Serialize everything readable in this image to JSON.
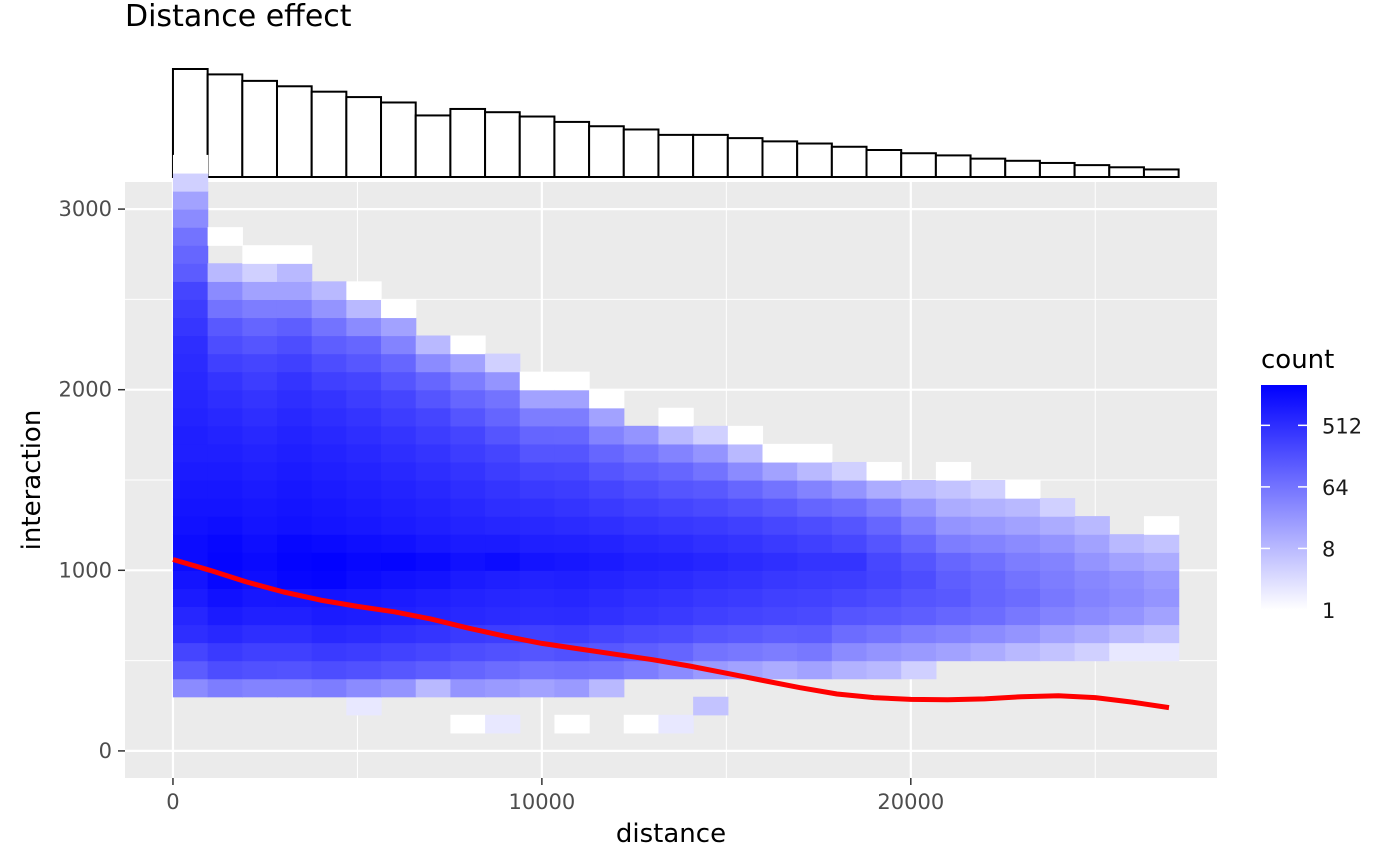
{
  "chart_data": {
    "title": "Distance effect",
    "xlabel": "distance",
    "ylabel": "interaction",
    "x_ticks": [
      0,
      10000,
      20000
    ],
    "y_ticks": [
      0,
      1000,
      2000,
      3000
    ],
    "xlim": [
      -1300,
      28300
    ],
    "ylim": [
      -150,
      3150
    ],
    "grid": true,
    "legend": {
      "title": "count",
      "position": "right",
      "scale": "log2",
      "breaks": [
        {
          "value": 512,
          "label": "512"
        },
        {
          "value": 64,
          "label": "64"
        },
        {
          "value": 8,
          "label": "8"
        },
        {
          "value": 1,
          "label": "1"
        }
      ],
      "low_color": "#ffffff",
      "high_color": "#0000ff",
      "max_count": 2000
    },
    "panels": [
      {
        "type": "heatmap",
        "name": "interaction vs distance",
        "bin_width_x": 940,
        "bin_width_y": 100,
        "columns": [
          {
            "x": 470,
            "counts": [
              null,
              null,
              32,
              128,
              256,
              512,
              640,
              900,
              1100,
              1400,
              1400,
              1200,
              1100,
              1000,
              900,
              800,
              800,
              700,
              640,
              600,
              560,
              512,
              400,
              320,
              256,
              128,
              96,
              64,
              32,
              16,
              4,
              1
            ]
          },
          {
            "x": 1410,
            "counts": [
              null,
              null,
              48,
              200,
              350,
              600,
              900,
              1200,
              1600,
              1700,
              1600,
              1300,
              1100,
              1000,
              900,
              800,
              700,
              600,
              512,
              420,
              300,
              200,
              140,
              64,
              32,
              8,
              null,
              1
            ]
          },
          {
            "x": 2350,
            "counts": [
              null,
              null,
              40,
              180,
              300,
              512,
              760,
              1000,
              1300,
              1500,
              1300,
              1100,
              1000,
              900,
              800,
              700,
              600,
              512,
              420,
              320,
              256,
              160,
              100,
              48,
              16,
              4,
              1
            ]
          },
          {
            "x": 3290,
            "counts": [
              null,
              null,
              40,
              170,
              300,
              512,
              780,
              1050,
              1600,
              1800,
              1600,
              1200,
              1100,
              1000,
              900,
              800,
              700,
              600,
              512,
              420,
              300,
              200,
              120,
              48,
              16,
              8,
              1
            ]
          },
          {
            "x": 4230,
            "counts": [
              null,
              null,
              48,
              200,
              350,
              600,
              900,
              1100,
              1700,
              1900,
              1500,
              1100,
              1000,
              900,
              800,
              700,
              600,
              512,
              420,
              300,
              200,
              120,
              64,
              24,
              8
            ]
          },
          {
            "x": 5170,
            "counts": [
              null,
              2,
              32,
              180,
              320,
              560,
              840,
              1000,
              1400,
              1600,
              1300,
              1000,
              900,
              800,
              700,
              600,
              512,
              420,
              320,
              256,
              150,
              96,
              32,
              8,
              1
            ]
          },
          {
            "x": 6110,
            "counts": [
              null,
              null,
              24,
              150,
              280,
              480,
              760,
              900,
              1200,
              1700,
              1200,
              900,
              800,
              700,
              600,
              512,
              420,
              320,
              256,
              160,
              96,
              40,
              16,
              1
            ]
          },
          {
            "x": 7050,
            "counts": [
              null,
              null,
              8,
              120,
              240,
              420,
              680,
              800,
              1100,
              1500,
              1000,
              800,
              700,
              600,
              512,
              420,
              320,
              256,
              160,
              96,
              32,
              8
            ]
          },
          {
            "x": 7990,
            "counts": [
              1,
              null,
              24,
              100,
              200,
              360,
              600,
              700,
              900,
              1200,
              900,
              700,
              600,
              512,
              420,
              320,
              256,
              160,
              96,
              48,
              16,
              1
            ]
          },
          {
            "x": 8930,
            "counts": [
              2,
              null,
              20,
              80,
              180,
              320,
              560,
              640,
              800,
              1400,
              900,
              640,
              512,
              420,
              320,
              256,
              160,
              100,
              64,
              24,
              4
            ]
          },
          {
            "x": 9870,
            "counts": [
              null,
              null,
              16,
              64,
              160,
              300,
              520,
              600,
              720,
              1100,
              800,
              600,
              480,
              360,
              256,
              160,
              100,
              48,
              16,
              1
            ]
          },
          {
            "x": 10810,
            "counts": [
              1,
              null,
              20,
              72,
              180,
              320,
              540,
              640,
              760,
              1000,
              760,
              560,
              420,
              320,
              240,
              160,
              96,
              48,
              16,
              1
            ]
          },
          {
            "x": 11750,
            "counts": [
              null,
              null,
              8,
              64,
              150,
              260,
              460,
              560,
              680,
              900,
              700,
              500,
              360,
              256,
              160,
              96,
              40,
              16,
              1
            ]
          },
          {
            "x": 12690,
            "counts": [
              1,
              null,
              null,
              48,
              120,
              220,
              400,
              480,
              600,
              780,
              600,
              420,
              300,
              200,
              120,
              64,
              24
            ]
          },
          {
            "x": 13630,
            "counts": [
              2,
              null,
              null,
              32,
              100,
              200,
              360,
              440,
              560,
              720,
              560,
              380,
              256,
              160,
              96,
              40,
              8,
              1
            ]
          },
          {
            "x": 14570,
            "counts": [
              null,
              6,
              null,
              20,
              64,
              160,
              300,
              380,
              480,
              640,
              480,
              340,
              220,
              140,
              64,
              24,
              4
            ]
          },
          {
            "x": 15510,
            "counts": [
              null,
              null,
              null,
              16,
              56,
              140,
              260,
              340,
              440,
              560,
              420,
              300,
              180,
              96,
              32,
              8,
              1
            ]
          },
          {
            "x": 16450,
            "counts": [
              null,
              null,
              null,
              12,
              48,
              120,
              240,
              300,
              380,
              500,
              360,
              240,
              140,
              64,
              16,
              1
            ]
          },
          {
            "x": 17390,
            "counts": [
              null,
              null,
              null,
              16,
              56,
              128,
              220,
              280,
              340,
              420,
              300,
              200,
              100,
              40,
              8,
              1
            ]
          },
          {
            "x": 18330,
            "counts": [
              null,
              null,
              null,
              10,
              32,
              80,
              160,
              240,
              320,
              420,
              240,
              160,
              80,
              24,
              4
            ]
          },
          {
            "x": 19270,
            "counts": [
              null,
              null,
              null,
              8,
              24,
              64,
              140,
              200,
              260,
              240,
              160,
              96,
              48,
              12,
              1
            ]
          },
          {
            "x": 20210,
            "counts": [
              null,
              null,
              null,
              4,
              20,
              48,
              120,
              160,
              200,
              160,
              96,
              48,
              24,
              8
            ]
          },
          {
            "x": 21150,
            "counts": [
              null,
              null,
              null,
              null,
              16,
              40,
              96,
              140,
              120,
              96,
              48,
              24,
              12,
              6,
              1
            ]
          },
          {
            "x": 22090,
            "counts": [
              null,
              null,
              null,
              null,
              12,
              32,
              80,
              100,
              96,
              72,
              40,
              20,
              10,
              4
            ]
          },
          {
            "x": 23030,
            "counts": [
              null,
              null,
              null,
              null,
              8,
              24,
              56,
              80,
              64,
              48,
              32,
              16,
              8,
              1
            ]
          },
          {
            "x": 23970,
            "counts": [
              null,
              null,
              null,
              null,
              6,
              16,
              40,
              56,
              48,
              40,
              24,
              12,
              4
            ]
          },
          {
            "x": 24910,
            "counts": [
              null,
              null,
              null,
              null,
              4,
              12,
              32,
              40,
              36,
              24,
              16,
              8
            ]
          },
          {
            "x": 25850,
            "counts": [
              null,
              null,
              null,
              null,
              2,
              8,
              24,
              32,
              28,
              16,
              8
            ]
          },
          {
            "x": 26790,
            "counts": [
              null,
              null,
              null,
              null,
              2,
              6,
              16,
              24,
              20,
              12,
              6,
              1
            ]
          }
        ]
      },
      {
        "type": "line",
        "name": "smooth fit",
        "color": "#ff0000",
        "x": [
          0,
          1000,
          2000,
          3000,
          4000,
          5000,
          6000,
          7000,
          8000,
          9000,
          10000,
          11000,
          12000,
          13000,
          14000,
          15000,
          16000,
          17000,
          18000,
          19000,
          20000,
          21000,
          22000,
          23000,
          24000,
          25000,
          26000,
          27000
        ],
        "y": [
          1060,
          1000,
          935,
          880,
          835,
          800,
          770,
          730,
          680,
          635,
          595,
          565,
          535,
          505,
          470,
          430,
          390,
          350,
          315,
          295,
          285,
          283,
          288,
          300,
          305,
          295,
          270,
          240
        ]
      },
      {
        "type": "histogram",
        "name": "distance marginal",
        "bin_width": 940,
        "x": [
          470,
          1410,
          2350,
          3290,
          4230,
          5170,
          6110,
          7050,
          7990,
          8930,
          9870,
          10810,
          11750,
          12690,
          13630,
          14570,
          15510,
          16450,
          17390,
          18330,
          19270,
          20210,
          21150,
          22090,
          23030,
          23970,
          24910,
          25850,
          26790
        ],
        "counts": [
          100,
          95,
          89,
          84,
          79,
          74,
          69,
          57,
          63,
          60,
          56,
          51,
          47,
          44,
          39,
          39,
          36,
          33,
          31,
          28,
          25,
          22,
          20,
          17,
          15,
          13,
          11,
          9,
          7
        ]
      }
    ]
  }
}
